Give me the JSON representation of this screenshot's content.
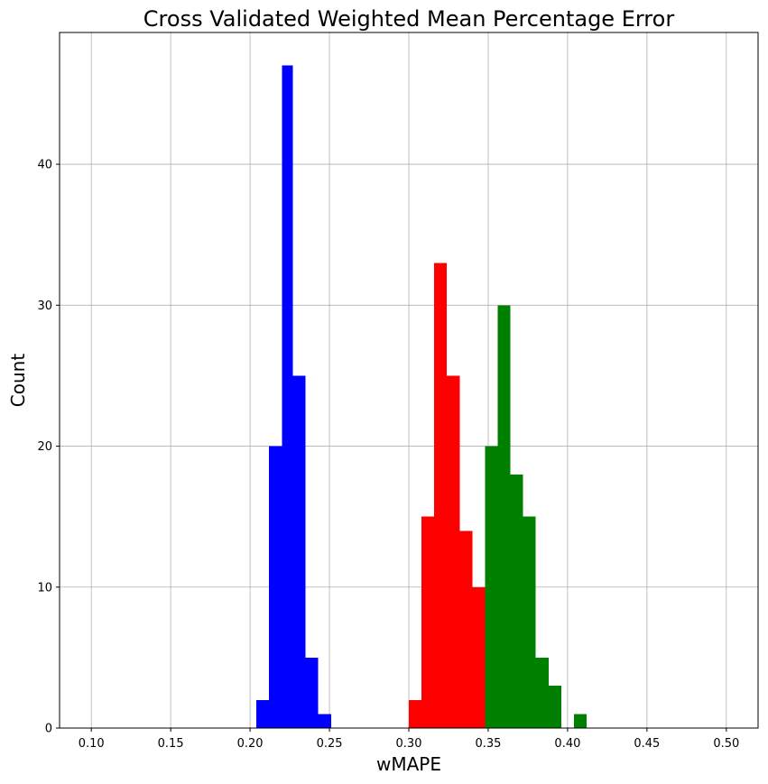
{
  "chart_data": {
    "type": "bar",
    "title": "Cross Validated Weighted Mean Percentage Error",
    "xlabel": "wMAPE",
    "ylabel": "Count",
    "xlim": [
      0.08,
      0.52
    ],
    "ylim": [
      0,
      49.35
    ],
    "grid": true,
    "xticks": [
      "0.10",
      "0.15",
      "0.20",
      "0.25",
      "0.30",
      "0.35",
      "0.40",
      "0.45",
      "0.50"
    ],
    "yticks": [
      "0",
      "10",
      "20",
      "30",
      "40"
    ],
    "series": [
      {
        "color": "#0000ff",
        "bins": [
          {
            "x0": 0.204,
            "x1": 0.212,
            "count": 2
          },
          {
            "x0": 0.212,
            "x1": 0.22,
            "count": 20
          },
          {
            "x0": 0.22,
            "x1": 0.227,
            "count": 47
          },
          {
            "x0": 0.227,
            "x1": 0.235,
            "count": 25
          },
          {
            "x0": 0.235,
            "x1": 0.243,
            "count": 5
          },
          {
            "x0": 0.243,
            "x1": 0.251,
            "count": 1
          }
        ]
      },
      {
        "color": "#ff0000",
        "bins": [
          {
            "x0": 0.3,
            "x1": 0.308,
            "count": 2
          },
          {
            "x0": 0.308,
            "x1": 0.316,
            "count": 15
          },
          {
            "x0": 0.316,
            "x1": 0.324,
            "count": 33
          },
          {
            "x0": 0.324,
            "x1": 0.332,
            "count": 25
          },
          {
            "x0": 0.332,
            "x1": 0.34,
            "count": 14
          },
          {
            "x0": 0.34,
            "x1": 0.348,
            "count": 10
          },
          {
            "x0": 0.348,
            "x1": 0.356,
            "count": 1
          }
        ]
      },
      {
        "color": "#008000",
        "bins": [
          {
            "x0": 0.348,
            "x1": 0.356,
            "count": 20
          },
          {
            "x0": 0.356,
            "x1": 0.364,
            "count": 30
          },
          {
            "x0": 0.364,
            "x1": 0.372,
            "count": 18
          },
          {
            "x0": 0.372,
            "x1": 0.38,
            "count": 15
          },
          {
            "x0": 0.38,
            "x1": 0.388,
            "count": 5
          },
          {
            "x0": 0.388,
            "x1": 0.396,
            "count": 3
          },
          {
            "x0": 0.396,
            "x1": 0.404,
            "count": 0
          },
          {
            "x0": 0.404,
            "x1": 0.412,
            "count": 1
          }
        ]
      }
    ]
  }
}
